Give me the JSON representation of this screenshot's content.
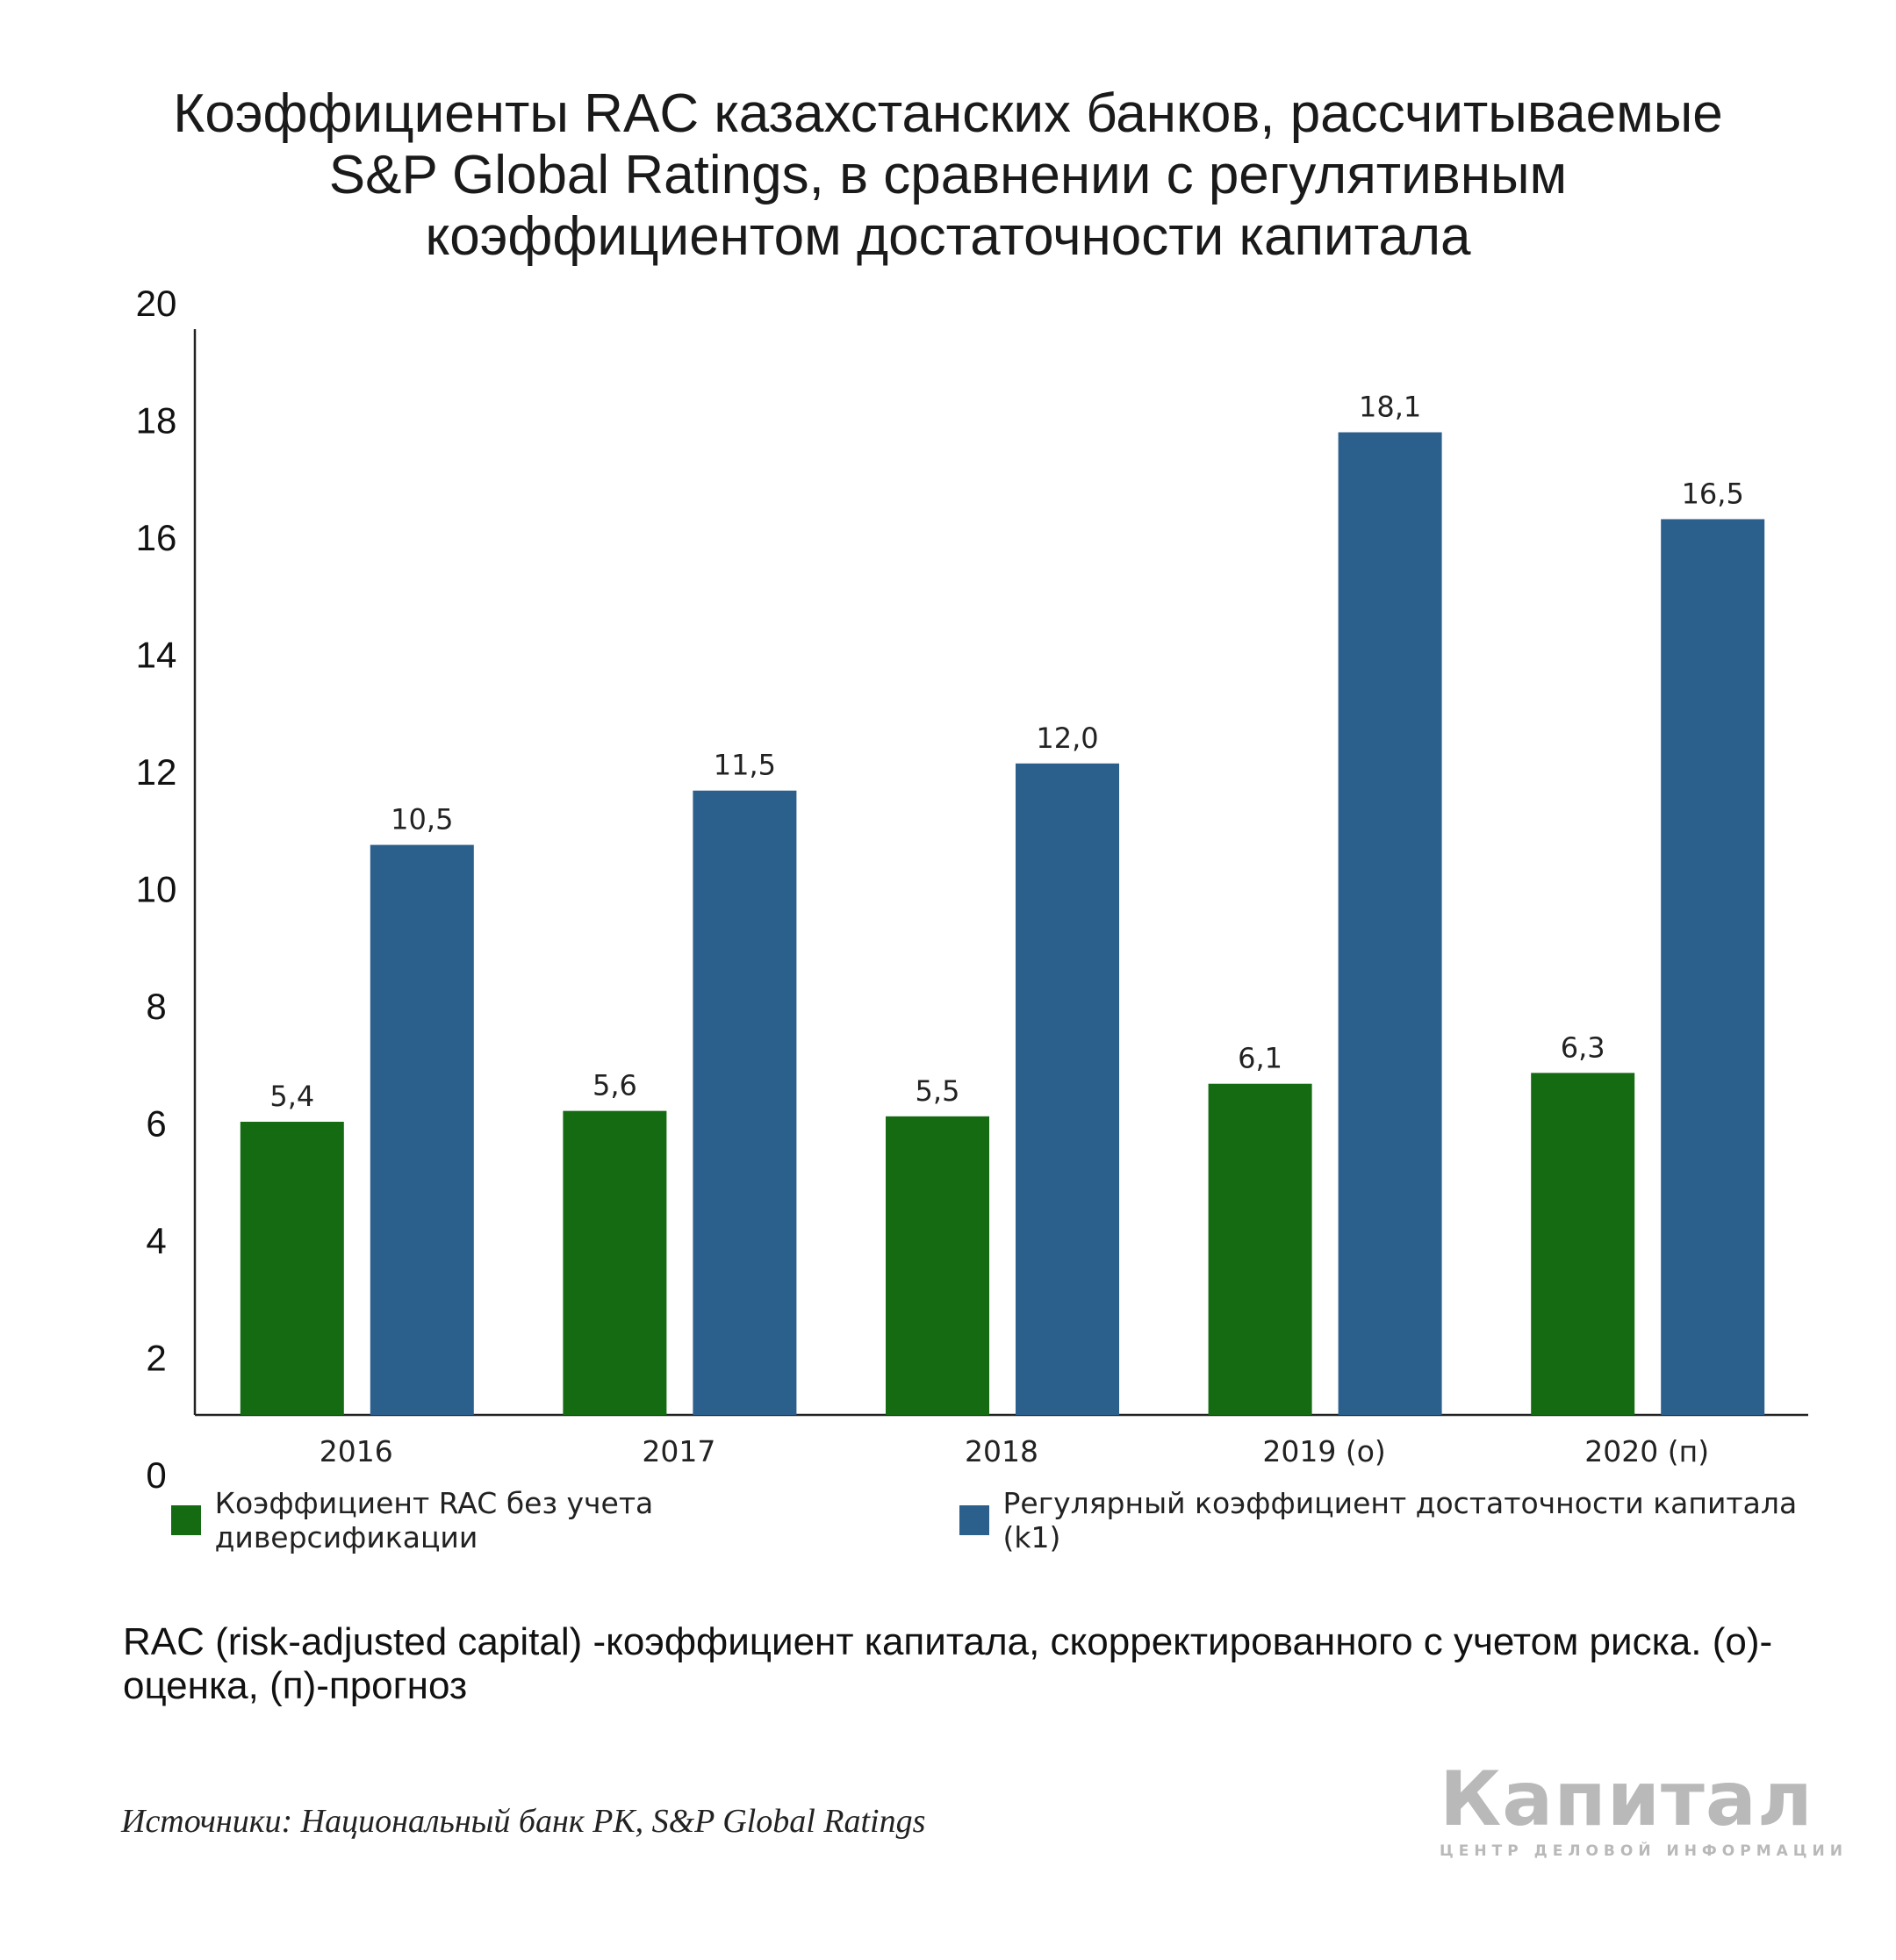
{
  "title_lines": [
    "Коэффициенты RAC казахстанских банков, рассчитываемые",
    "S&P Global Ratings, в сравнении с регулятивным",
    "коэффициентом достаточности капитала"
  ],
  "chart_data": {
    "type": "bar",
    "categories": [
      "2016",
      "2017",
      "2018",
      "2019 (о)",
      "2020 (п)"
    ],
    "series": [
      {
        "name": "Коэффициент RAC без учета диверсификации",
        "color": "#146b12",
        "values": [
          5.4,
          5.6,
          5.5,
          6.1,
          6.3
        ],
        "labels": [
          "5,4",
          "5,6",
          "5,5",
          "6,1",
          "6,3"
        ]
      },
      {
        "name": "Регулярный коэффициент достаточности капитала (k1)",
        "color": "#2b5f8c",
        "values": [
          10.5,
          11.5,
          12.0,
          18.1,
          16.5
        ],
        "labels": [
          "10,5",
          "11,5",
          "12,0",
          "18,1",
          "16,5"
        ]
      }
    ],
    "yticks": [
      "0",
      "2",
      "4",
      "6",
      "8",
      "10",
      "12",
      "14",
      "16",
      "18",
      "20"
    ],
    "ylim": [
      0,
      20
    ],
    "grid": false,
    "legend_position": "bottom"
  },
  "note": "RAC (risk-adjusted capital) -коэффициент капитала, скорректированного с учетом риска. (о)-оценка, (п)-прогноз",
  "source": "Источники: Национальный банк РК, S&P Global Ratings",
  "logo": {
    "name": "Капитал",
    "tagline": "ЦЕНТР ДЕЛОВОЙ ИНФОРМАЦИИ"
  }
}
